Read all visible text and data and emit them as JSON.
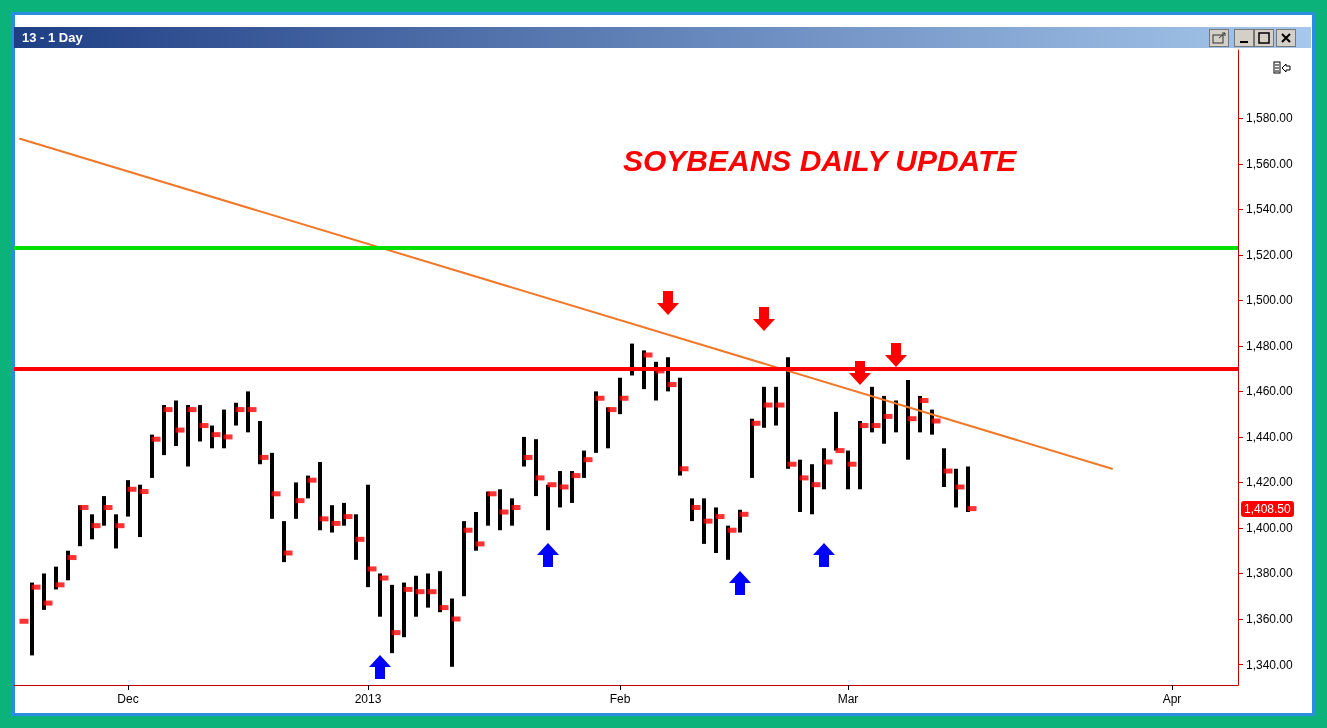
{
  "chart_data": {
    "type": "bar",
    "title": "SOYBEANS DAILY UPDATE",
    "subtitle": "13 - 1 Day",
    "categories": [
      null,
      null,
      null,
      null,
      null,
      null,
      null,
      null,
      null,
      "Dec",
      null,
      null,
      null,
      null,
      null,
      null,
      null,
      null,
      null,
      null,
      null,
      null,
      null,
      null,
      null,
      null,
      null,
      null,
      null,
      "2013",
      null,
      null,
      null,
      null,
      null,
      null,
      null,
      null,
      null,
      null,
      null,
      null,
      null,
      null,
      null,
      null,
      null,
      null,
      null,
      null,
      "Feb",
      null,
      null,
      null,
      null,
      null,
      null,
      null,
      null,
      null,
      null,
      null,
      null,
      null,
      null,
      null,
      null,
      null,
      null,
      "Mar",
      null,
      null,
      null,
      null,
      null,
      null,
      null,
      null,
      null,
      null,
      null,
      null,
      null,
      null,
      null,
      null,
      null,
      null,
      null,
      null,
      null,
      null,
      null,
      null,
      null,
      null,
      "Apr",
      null,
      null,
      null,
      null,
      null
    ],
    "ylim": [
      1331,
      1610
    ],
    "yticks": [
      {
        "value": 1340,
        "label": "1,340.00"
      },
      {
        "value": 1360,
        "label": "1,360.00"
      },
      {
        "value": 1380,
        "label": "1,380.00"
      },
      {
        "value": 1400,
        "label": "1,400.00"
      },
      {
        "value": 1420,
        "label": "1,420.00"
      },
      {
        "value": 1440,
        "label": "1,440.00"
      },
      {
        "value": 1460,
        "label": "1,460.00"
      },
      {
        "value": 1480,
        "label": "1,480.00"
      },
      {
        "value": 1500,
        "label": "1,500.00"
      },
      {
        "value": 1520,
        "label": "1,520.00"
      },
      {
        "value": 1540,
        "label": "1,540.00"
      },
      {
        "value": 1560,
        "label": "1,560.00"
      },
      {
        "value": 1580,
        "label": "1,580.00"
      }
    ],
    "series": [
      {
        "color": "#000000",
        "base": [
          null,
          1344,
          1364,
          1373,
          1377,
          1392,
          1395,
          1401,
          1391,
          1405,
          1396,
          1422,
          1432,
          1436,
          1427,
          1438,
          1435,
          1435,
          1445,
          1442,
          1428,
          1404,
          1385,
          1404,
          1413,
          1399,
          1398,
          1401,
          1386,
          1374,
          1361,
          1345,
          1352,
          1361,
          1365,
          1363,
          1339,
          1370,
          1390,
          1401,
          1399,
          1401,
          1427,
          1414,
          1399,
          1409,
          1411,
          1422,
          1433,
          1435,
          1450,
          1467,
          1461,
          1456,
          1460,
          1423,
          1403,
          1393,
          1389,
          1386,
          1398,
          1422,
          1444,
          1445,
          1426,
          1407,
          1406,
          1417,
          1434,
          1417,
          1417,
          1442,
          1437,
          1442,
          1430,
          1442,
          1441,
          1418,
          1409,
          1407,
          null,
          null,
          null,
          null,
          null,
          null,
          null,
          null,
          null,
          null,
          null,
          null,
          null,
          null,
          null,
          null,
          null,
          null,
          null,
          null,
          null,
          null
        ],
        "values": [
          null,
          32,
          16,
          10,
          13,
          18,
          11,
          13,
          15,
          16,
          23,
          19,
          22,
          20,
          27,
          16,
          10,
          17,
          10,
          18,
          19,
          29,
          18,
          16,
          10,
          30,
          12,
          10,
          20,
          45,
          19,
          30,
          24,
          18,
          15,
          18,
          30,
          33,
          17,
          15,
          18,
          12,
          13,
          25,
          20,
          16,
          14,
          12,
          27,
          18,
          16,
          14,
          17,
          17,
          15,
          43,
          10,
          20,
          20,
          15,
          10,
          26,
          18,
          17,
          49,
          23,
          22,
          18,
          17,
          17,
          30,
          20,
          21,
          14,
          35,
          16,
          11,
          17,
          17,
          20,
          null,
          null,
          null,
          null,
          null,
          null,
          null,
          null,
          null,
          null,
          null,
          null,
          null,
          null,
          null,
          null,
          null,
          null,
          null,
          null,
          null,
          null
        ]
      },
      {
        "type": "scatter",
        "color": "#ff0000",
        "marker": "square",
        "values": [
          1359,
          1374,
          1367,
          1375,
          1387,
          1409,
          1401,
          1409,
          1401,
          1417,
          1416,
          1439,
          1452,
          1443,
          1452,
          1445,
          1441,
          1440,
          1452,
          1452,
          1431,
          1415,
          1389,
          1412,
          1421,
          1404,
          1402,
          1405,
          1395,
          1382,
          1378,
          1354,
          1373,
          1372,
          1372,
          1365,
          1360,
          1399,
          1393,
          1415,
          1407,
          1409,
          1431,
          1422,
          1419,
          1418,
          1423,
          1430,
          1457,
          1452,
          1457,
          null,
          1476,
          1469,
          1463,
          1426,
          1409,
          1403,
          1405,
          1399,
          1406,
          1446,
          1454,
          1454,
          1428,
          1422,
          1419,
          1429,
          1434,
          1428,
          1445,
          1445,
          1449,
          null,
          1448,
          1456,
          1447,
          1425,
          1418,
          1408.5,
          null,
          null,
          null,
          null,
          null,
          null,
          null,
          null,
          null,
          null,
          null,
          null,
          null,
          null,
          null,
          null,
          null,
          null,
          null,
          null,
          null,
          null
        ]
      },
      {
        "type": "line",
        "color": "#f07828",
        "line_style": "solid",
        "values": [
          1571,
          null,
          null,
          null,
          null,
          null,
          null,
          null,
          null,
          null,
          null,
          null,
          null,
          null,
          null,
          null,
          null,
          null,
          null,
          null,
          null,
          null,
          null,
          null,
          null,
          null,
          null,
          null,
          null,
          null,
          null,
          null,
          null,
          null,
          null,
          null,
          null,
          null,
          null,
          null,
          null,
          null,
          null,
          null,
          null,
          null,
          null,
          null,
          null,
          null,
          null,
          null,
          null,
          null,
          null,
          null,
          null,
          null,
          null,
          null,
          null,
          null,
          null,
          null,
          null,
          null,
          null,
          null,
          null,
          null,
          null,
          null,
          null,
          null,
          null,
          null,
          null,
          null,
          null,
          null,
          null,
          null,
          null,
          null,
          null,
          null,
          null,
          null,
          null,
          null,
          null,
          1426,
          null,
          null,
          null,
          null,
          null,
          null,
          null,
          null,
          null,
          null
        ]
      }
    ],
    "ref_lines": [
      {
        "axis": "y",
        "value": 1523,
        "color": "#00e000"
      },
      {
        "axis": "y",
        "value": 1470,
        "color": "#ff0000"
      }
    ],
    "annotations": [
      "1,408.50"
    ]
  }
}
